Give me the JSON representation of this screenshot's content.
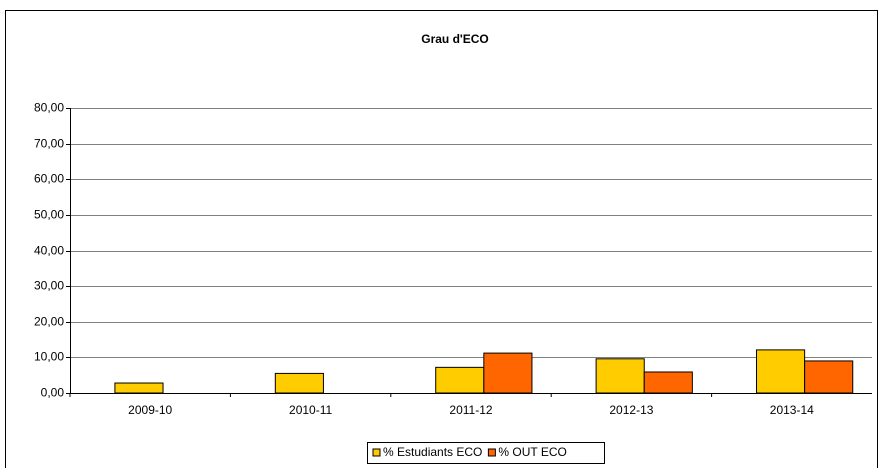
{
  "chart_data": {
    "type": "bar",
    "title": "Grau d'ECO",
    "categories": [
      "2009-10",
      "2010-11",
      "2011-12",
      "2012-13",
      "2013-14"
    ],
    "series": [
      {
        "name": "% Estudiants ECO",
        "color": "#ffcc00",
        "values": [
          2.8,
          5.5,
          7.2,
          9.6,
          12.1
        ]
      },
      {
        "name": "% OUT ECO",
        "color": "#ff6600",
        "values": [
          0,
          0,
          11.2,
          5.9,
          9.0
        ]
      }
    ],
    "ylim": [
      0,
      80
    ],
    "yticks": [
      {
        "value": 0,
        "label": "0,00"
      },
      {
        "value": 10,
        "label": "10,00"
      },
      {
        "value": 20,
        "label": "20,00"
      },
      {
        "value": 30,
        "label": "30,00"
      },
      {
        "value": 40,
        "label": "40,00"
      },
      {
        "value": 50,
        "label": "50,00"
      },
      {
        "value": 60,
        "label": "60,00"
      },
      {
        "value": 70,
        "label": "70,00"
      },
      {
        "value": 80,
        "label": "80,00"
      }
    ],
    "grid": true,
    "legend": "bottom"
  }
}
